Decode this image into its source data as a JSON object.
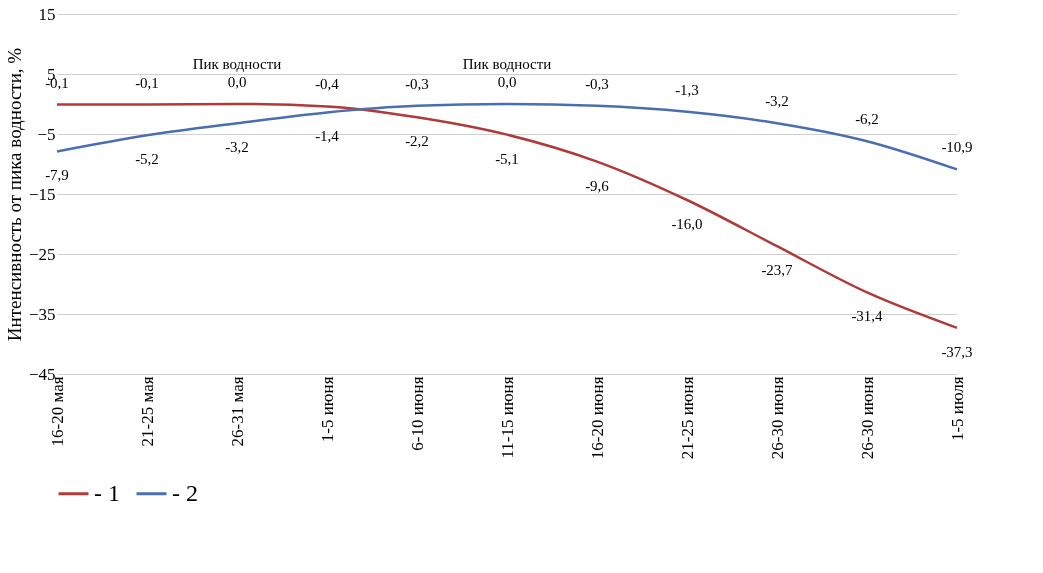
{
  "chart_data": {
    "type": "line",
    "ylabel": "Интенсивность от пика водности, %",
    "categories": [
      "16-20 мая",
      "21-25 мая",
      "26-31 мая",
      "1-5 июня",
      "6-10 июня",
      "11-15 июня",
      "16-20 июня",
      "21-25 июня",
      "26-30 июня",
      "26-30 июня",
      "1-5 июля"
    ],
    "series": [
      {
        "name": "- 1",
        "color": "#b03a3a",
        "values": [
          -0.1,
          -0.1,
          0.0,
          -0.4,
          -2.2,
          -5.1,
          -9.6,
          -16.0,
          -23.7,
          -31.4,
          -37.3
        ],
        "value_labels": [
          "-0,1",
          "-0,1",
          "0,0",
          "-0,4",
          "-2,2",
          "-5,1",
          "-9,6",
          "-16,0",
          "-23,7",
          "-31,4",
          "-37,3"
        ]
      },
      {
        "name": "- 2",
        "color": "#4a6fb0",
        "values": [
          -7.9,
          -5.2,
          -3.2,
          -1.4,
          -0.3,
          0.0,
          -0.3,
          -1.3,
          -3.2,
          -6.2,
          -10.9
        ],
        "value_labels": [
          "-7,9",
          "-5,2",
          "-3,2",
          "-1,4",
          "-0,3",
          "0,0",
          "-0,3",
          "-1,3",
          "-3,2",
          "-6,2",
          "-10,9"
        ]
      }
    ],
    "annotations": [
      {
        "text": "Пик водности",
        "x": "26-31 мая",
        "y": 0.0
      },
      {
        "text": "Пик водности",
        "x": "11-15 июня",
        "y": 0.0
      }
    ],
    "ylim": [
      -45,
      15
    ],
    "yticks": [
      -45,
      -35,
      -25,
      -15,
      -5,
      5,
      15
    ],
    "grid": "y",
    "legend": "bottom",
    "marker": "none",
    "line_style": "solid"
  }
}
